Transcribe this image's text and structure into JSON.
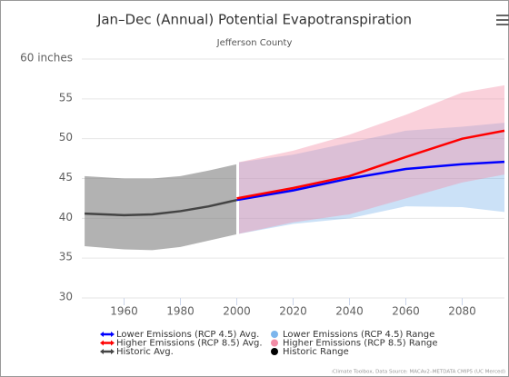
{
  "chart_data": {
    "type": "line",
    "title": "Jan–Dec (Annual) Potential Evapotranspiration",
    "subtitle": "Jefferson County",
    "credits": ":Climate Toolbox, Data Source: MACAv2–METDATA CMIP5 (UC Merced)",
    "xlim": [
      1945,
      2095
    ],
    "xticks": [
      1960,
      1980,
      2000,
      2020,
      2040,
      2060,
      2080
    ],
    "ylim": [
      30,
      60
    ],
    "yticks": [
      30,
      35,
      40,
      45,
      50,
      55,
      {
        "value": 60,
        "label": "60 inches"
      }
    ],
    "grid": true,
    "ranges": [
      {
        "name": "Lower Emissions (RCP 4.5) Range",
        "color": "#7cb5ec",
        "x": [
          2000,
          2020,
          2040,
          2060,
          2080,
          2095
        ],
        "low": [
          38.0,
          39.3,
          40.0,
          41.5,
          41.4,
          40.8
        ],
        "high": [
          47.0,
          48.0,
          49.5,
          51.0,
          51.5,
          52.0
        ]
      },
      {
        "name": "Higher Emissions (RCP 8.5) Range",
        "color": "#f28ca6",
        "x": [
          2000,
          2020,
          2040,
          2060,
          2080,
          2095
        ],
        "low": [
          38.0,
          39.5,
          40.5,
          42.5,
          44.5,
          45.5
        ],
        "high": [
          47.0,
          48.5,
          50.5,
          53.0,
          55.8,
          56.7
        ]
      },
      {
        "name": "Historic Range",
        "color": "#000000",
        "x": [
          1946,
          1960,
          1970,
          1980,
          1990,
          2000
        ],
        "low": [
          36.5,
          36.1,
          36.0,
          36.4,
          37.2,
          38.0
        ],
        "high": [
          45.3,
          45.0,
          45.0,
          45.3,
          46.0,
          46.8
        ]
      }
    ],
    "series": [
      {
        "name": "Lower Emissions (RCP 4.5) Avg.",
        "color": "#0000ff",
        "x": [
          2000,
          2020,
          2040,
          2060,
          2080,
          2095
        ],
        "values": [
          42.3,
          43.5,
          45.0,
          46.2,
          46.8,
          47.1
        ]
      },
      {
        "name": "Higher Emissions (RCP 8.5) Avg.",
        "color": "#ff0000",
        "x": [
          2000,
          2020,
          2040,
          2060,
          2080,
          2095
        ],
        "values": [
          42.5,
          43.8,
          45.3,
          47.7,
          50.0,
          51.0
        ]
      },
      {
        "name": "Historic Avg.",
        "color": "#444444",
        "x": [
          1946,
          1960,
          1970,
          1980,
          1990,
          2000
        ],
        "values": [
          40.6,
          40.4,
          40.5,
          40.9,
          41.5,
          42.3
        ]
      }
    ]
  }
}
